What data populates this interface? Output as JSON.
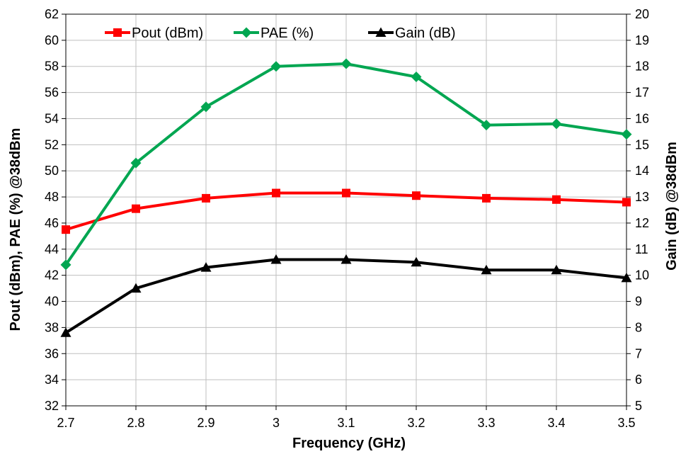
{
  "chart_data": {
    "type": "line",
    "title": "",
    "xlabel": "Frequency (GHz)",
    "ylabel_left": "Pout (dBm), PAE (%) @38dBm",
    "ylabel_right": "Gain (dB) @38dBm",
    "x": [
      2.7,
      2.8,
      2.9,
      3.0,
      3.1,
      3.2,
      3.3,
      3.4,
      3.5
    ],
    "x_tick_labels": [
      "2.7",
      "2.8",
      "2.9",
      "3",
      "3.1",
      "3.2",
      "3.3",
      "3.4",
      "3.5"
    ],
    "xlim": [
      2.7,
      3.5
    ],
    "ylim_left": [
      32,
      62
    ],
    "y_left_ticks": [
      32,
      34,
      36,
      38,
      40,
      42,
      44,
      46,
      48,
      50,
      52,
      54,
      56,
      58,
      60,
      62
    ],
    "ylim_right": [
      5,
      20
    ],
    "y_right_ticks": [
      5,
      6,
      7,
      8,
      9,
      10,
      11,
      12,
      13,
      14,
      15,
      16,
      17,
      18,
      19,
      20
    ],
    "grid": "vertical-and-horizontal",
    "legend_position": "top",
    "series": [
      {
        "name": "Pout (dBm)",
        "axis": "left",
        "color": "#ff0000",
        "marker": "square",
        "values": [
          45.5,
          47.1,
          47.9,
          48.3,
          48.3,
          48.1,
          47.9,
          47.8,
          47.6
        ]
      },
      {
        "name": "PAE (%)",
        "axis": "left",
        "color": "#00a651",
        "marker": "diamond",
        "values": [
          42.8,
          50.6,
          54.9,
          58.0,
          58.2,
          57.2,
          53.5,
          53.6,
          52.8
        ]
      },
      {
        "name": "Gain (dB)",
        "axis": "right",
        "color": "#000000",
        "marker": "triangle",
        "values": [
          7.8,
          9.5,
          10.3,
          10.6,
          10.6,
          10.5,
          10.2,
          10.2,
          9.9
        ]
      }
    ]
  }
}
